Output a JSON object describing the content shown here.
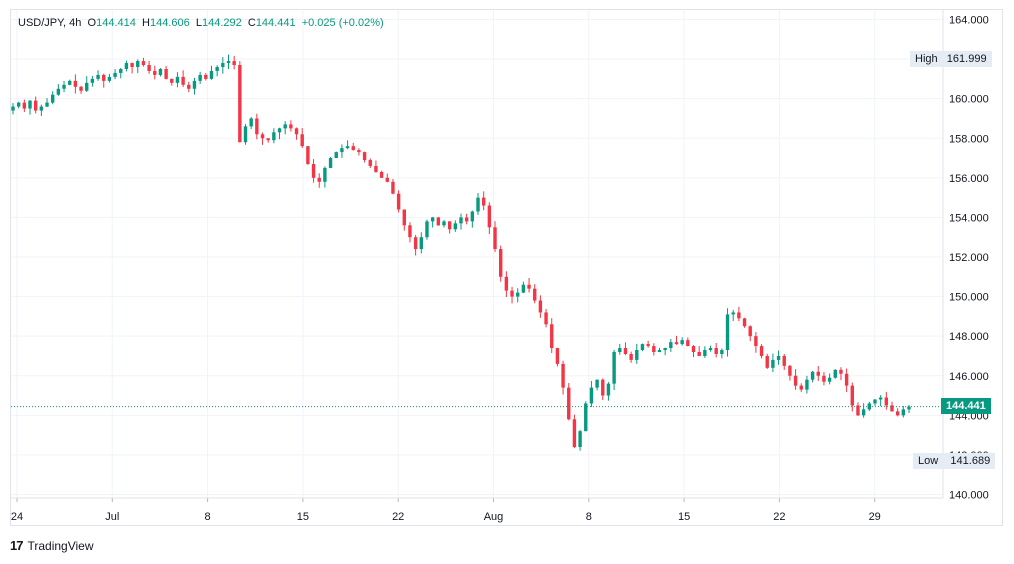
{
  "legend": {
    "symbol": "USD/JPY",
    "interval": "4h",
    "o_label": "O",
    "o_value": "144.414",
    "h_label": "H",
    "h_value": "144.606",
    "l_label": "L",
    "l_value": "144.292",
    "c_label": "C",
    "c_value": "144.441",
    "change": "+0.025 (+0.02%)"
  },
  "high_marker": {
    "label": "High",
    "value": "161.999"
  },
  "low_marker": {
    "label": "Low",
    "value": "141.689"
  },
  "last_price": "144.441",
  "brand": {
    "name": "TradingView",
    "icon": "tradingview-logo-icon"
  },
  "colors": {
    "up": "#089981",
    "down": "#f23645",
    "grid": "#f0f3fa"
  },
  "chart_data": {
    "type": "candlestick",
    "x_ticks": [
      "24",
      "Jul",
      "8",
      "15",
      "22",
      "Aug",
      "8",
      "15",
      "22",
      "29"
    ],
    "y_ticks": [
      "140.000",
      "142.000",
      "144.000",
      "146.000",
      "148.000",
      "150.000",
      "152.000",
      "154.000",
      "156.000",
      "158.000",
      "160.000",
      "162.000",
      "164.000"
    ],
    "ylim": [
      140,
      164
    ],
    "grid": true,
    "closes": [
      159.6,
      159.8,
      159.5,
      159.9,
      159.4,
      159.6,
      159.8,
      160.2,
      160.5,
      160.7,
      160.9,
      160.6,
      160.4,
      160.8,
      161.0,
      161.2,
      160.9,
      161.1,
      161.3,
      161.5,
      161.8,
      161.6,
      161.9,
      161.7,
      161.4,
      161.2,
      161.5,
      161.0,
      160.8,
      161.1,
      160.7,
      160.5,
      160.9,
      161.2,
      161.0,
      161.4,
      161.6,
      161.8,
      161.9,
      161.7,
      157.8,
      158.6,
      159.0,
      158.2,
      158.0,
      157.9,
      158.3,
      158.5,
      158.7,
      158.5,
      158.2,
      157.6,
      156.7,
      156.0,
      155.8,
      156.5,
      157.0,
      157.3,
      157.5,
      157.6,
      157.4,
      157.3,
      156.9,
      156.6,
      156.3,
      156.0,
      155.8,
      155.2,
      154.4,
      153.6,
      153.0,
      152.4,
      153.0,
      153.8,
      154.0,
      153.6,
      153.8,
      153.4,
      153.7,
      154.0,
      153.8,
      154.3,
      155.0,
      154.6,
      153.5,
      152.4,
      151.0,
      150.3,
      150.0,
      150.2,
      150.6,
      150.4,
      149.8,
      149.2,
      148.6,
      147.4,
      146.6,
      145.4,
      143.8,
      142.4,
      143.2,
      144.6,
      145.4,
      145.8,
      145.0,
      145.6,
      147.2,
      147.4,
      147.1,
      146.8,
      147.3,
      147.6,
      147.5,
      147.2,
      147.3,
      147.4,
      147.7,
      147.6,
      147.8,
      147.5,
      147.2,
      147.0,
      147.3,
      147.4,
      147.1,
      147.3,
      149.1,
      149.2,
      148.9,
      148.5,
      148.0,
      147.5,
      147.0,
      146.4,
      146.8,
      147.0,
      146.5,
      146.0,
      145.5,
      145.3,
      145.8,
      146.2,
      146.0,
      145.7,
      145.9,
      146.3,
      146.1,
      145.5,
      144.5,
      144.0,
      144.3,
      144.6,
      144.8,
      144.9,
      144.5,
      144.2,
      144.0,
      144.3,
      144.441
    ]
  }
}
